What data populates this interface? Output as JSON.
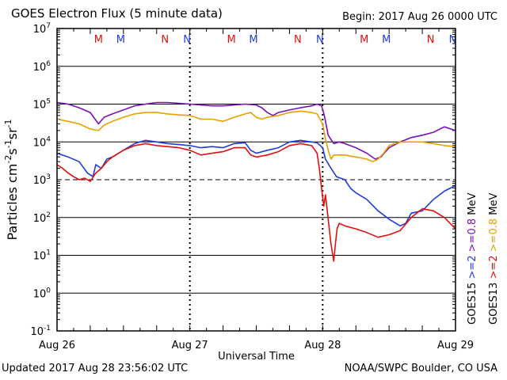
{
  "header": {
    "title": "GOES Electron Flux (5 minute data)",
    "begin": "Begin: 2017 Aug 26 0000 UTC"
  },
  "footer": {
    "updated": "Updated 2017 Aug 28 23:56:02 UTC",
    "credit": "NOAA/SWPC Boulder, CO USA"
  },
  "chart_data": {
    "type": "line",
    "y_scale": "log",
    "ylim": [
      0.1,
      10000000
    ],
    "xlim": [
      0,
      72
    ],
    "xlabel": "Universal Time",
    "x_ticks": [
      {
        "value": 0,
        "label": "Aug 26"
      },
      {
        "value": 24,
        "label": "Aug 27"
      },
      {
        "value": 48,
        "label": "Aug 28"
      },
      {
        "value": 72,
        "label": "Aug 29"
      }
    ],
    "ylabel": {
      "base": "Particles cm",
      "e1": "-2",
      "mid1": "s",
      "e2": "-1",
      "mid2": "sr",
      "e3": "-1"
    },
    "y_ticks": [
      {
        "value": 10000000,
        "base": "10",
        "exp": "7"
      },
      {
        "value": 1000000,
        "base": "10",
        "exp": "6"
      },
      {
        "value": 100000,
        "base": "10",
        "exp": "5"
      },
      {
        "value": 10000,
        "base": "10",
        "exp": "4"
      },
      {
        "value": 1000,
        "base": "10",
        "exp": "3"
      },
      {
        "value": 100,
        "base": "10",
        "exp": "2"
      },
      {
        "value": 10,
        "base": "10",
        "exp": "1"
      },
      {
        "value": 1,
        "base": "10",
        "exp": "0"
      },
      {
        "value": 0.1,
        "base": "10",
        "exp": "-1"
      }
    ],
    "threshold": 1000,
    "grid": true,
    "legend_position": "right-vertical",
    "legend_columns": [
      {
        "sat": "GOES15",
        "entries": [
          {
            "label": ">=2",
            "color": "#1f3ad8"
          },
          {
            "label": ">=0.8",
            "color": "#7a10b8"
          }
        ],
        "unit": "MeV"
      },
      {
        "sat": "GOES13",
        "entries": [
          {
            "label": ">=2",
            "color": "#e01010"
          },
          {
            "label": ">=0.8",
            "color": "#e8a000"
          }
        ],
        "unit": "MeV"
      }
    ],
    "markers": [
      {
        "t": 7.5,
        "text": "M",
        "color": "#e01010"
      },
      {
        "t": 11.5,
        "text": "M",
        "color": "#1f3ad8"
      },
      {
        "t": 19.5,
        "text": "N",
        "color": "#e01010"
      },
      {
        "t": 23.5,
        "text": "N",
        "color": "#1f3ad8"
      },
      {
        "t": 31.5,
        "text": "M",
        "color": "#e01010"
      },
      {
        "t": 35.5,
        "text": "M",
        "color": "#1f3ad8"
      },
      {
        "t": 43.5,
        "text": "N",
        "color": "#e01010"
      },
      {
        "t": 47.5,
        "text": "N",
        "color": "#1f3ad8"
      },
      {
        "t": 55.5,
        "text": "M",
        "color": "#e01010"
      },
      {
        "t": 59.5,
        "text": "M",
        "color": "#1f3ad8"
      },
      {
        "t": 67.5,
        "text": "N",
        "color": "#e01010"
      },
      {
        "t": 71.5,
        "text": "N",
        "color": "#1f3ad8"
      }
    ],
    "series": [
      {
        "color": "#7a10b8",
        "points": [
          [
            0,
            110000
          ],
          [
            2,
            100000
          ],
          [
            4,
            80000
          ],
          [
            6,
            60000
          ],
          [
            7.5,
            30000
          ],
          [
            8.5,
            45000
          ],
          [
            10,
            55000
          ],
          [
            12,
            70000
          ],
          [
            14,
            90000
          ],
          [
            16,
            100000
          ],
          [
            18,
            110000
          ],
          [
            20,
            110000
          ],
          [
            22,
            105000
          ],
          [
            24,
            100000
          ],
          [
            26,
            95000
          ],
          [
            28,
            90000
          ],
          [
            30,
            90000
          ],
          [
            32,
            95000
          ],
          [
            34,
            100000
          ],
          [
            36,
            95000
          ],
          [
            37,
            80000
          ],
          [
            38,
            60000
          ],
          [
            39,
            50000
          ],
          [
            40,
            60000
          ],
          [
            42,
            70000
          ],
          [
            44,
            80000
          ],
          [
            46,
            90000
          ],
          [
            47,
            100000
          ],
          [
            47.8,
            90000
          ],
          [
            48.3,
            50000
          ],
          [
            49,
            15000
          ],
          [
            50,
            9000
          ],
          [
            51,
            10000
          ],
          [
            52,
            9000
          ],
          [
            54,
            7000
          ],
          [
            56,
            5000
          ],
          [
            57.5,
            3500
          ],
          [
            58.5,
            4000
          ],
          [
            60,
            7000
          ],
          [
            62,
            10000
          ],
          [
            64,
            13000
          ],
          [
            66,
            15000
          ],
          [
            68,
            18000
          ],
          [
            70,
            25000
          ],
          [
            72,
            20000
          ]
        ]
      },
      {
        "color": "#e8a000",
        "points": [
          [
            0,
            40000
          ],
          [
            2,
            35000
          ],
          [
            4,
            30000
          ],
          [
            6,
            22000
          ],
          [
            7.5,
            20000
          ],
          [
            8.5,
            28000
          ],
          [
            10,
            35000
          ],
          [
            12,
            45000
          ],
          [
            14,
            55000
          ],
          [
            16,
            60000
          ],
          [
            18,
            60000
          ],
          [
            20,
            55000
          ],
          [
            22,
            52000
          ],
          [
            24,
            50000
          ],
          [
            26,
            40000
          ],
          [
            28,
            40000
          ],
          [
            30,
            35000
          ],
          [
            32,
            45000
          ],
          [
            34,
            55000
          ],
          [
            35,
            60000
          ],
          [
            36,
            45000
          ],
          [
            37,
            40000
          ],
          [
            38,
            45000
          ],
          [
            40,
            50000
          ],
          [
            42,
            60000
          ],
          [
            44,
            65000
          ],
          [
            46,
            60000
          ],
          [
            47,
            55000
          ],
          [
            48,
            30000
          ],
          [
            48.5,
            12000
          ],
          [
            49,
            6000
          ],
          [
            49.5,
            3500
          ],
          [
            50,
            4500
          ],
          [
            52,
            4500
          ],
          [
            54,
            4000
          ],
          [
            56,
            3500
          ],
          [
            57,
            3000
          ],
          [
            58,
            3500
          ],
          [
            59,
            5000
          ],
          [
            60,
            8000
          ],
          [
            62,
            10000
          ],
          [
            64,
            10000
          ],
          [
            66,
            10000
          ],
          [
            68,
            9000
          ],
          [
            70,
            8000
          ],
          [
            72,
            7500
          ]
        ]
      },
      {
        "color": "#1f3ad8",
        "points": [
          [
            0,
            5000
          ],
          [
            2,
            4000
          ],
          [
            4,
            3000
          ],
          [
            5.5,
            1500
          ],
          [
            6.5,
            1200
          ],
          [
            7,
            2500
          ],
          [
            8,
            2000
          ],
          [
            9,
            3500
          ],
          [
            10,
            4000
          ],
          [
            12,
            6000
          ],
          [
            14,
            9000
          ],
          [
            16,
            11000
          ],
          [
            18,
            10000
          ],
          [
            20,
            9000
          ],
          [
            22,
            8500
          ],
          [
            24,
            8000
          ],
          [
            26,
            7000
          ],
          [
            28,
            7500
          ],
          [
            30,
            7000
          ],
          [
            32,
            9000
          ],
          [
            34,
            9500
          ],
          [
            35,
            6000
          ],
          [
            36,
            5000
          ],
          [
            38,
            6000
          ],
          [
            40,
            7000
          ],
          [
            42,
            10000
          ],
          [
            44,
            11000
          ],
          [
            46,
            10000
          ],
          [
            47,
            9500
          ],
          [
            48,
            7000
          ],
          [
            48.5,
            3500
          ],
          [
            49.5,
            2000
          ],
          [
            50.5,
            1200
          ],
          [
            52,
            1000
          ],
          [
            53,
            600
          ],
          [
            54,
            450
          ],
          [
            56,
            300
          ],
          [
            58,
            150
          ],
          [
            60,
            90
          ],
          [
            62,
            60
          ],
          [
            63,
            70
          ],
          [
            64,
            130
          ],
          [
            66,
            150
          ],
          [
            68,
            300
          ],
          [
            70,
            500
          ],
          [
            72,
            700
          ]
        ]
      },
      {
        "color": "#e01010",
        "points": [
          [
            0,
            2500
          ],
          [
            1,
            2000
          ],
          [
            2,
            1500
          ],
          [
            3,
            1200
          ],
          [
            4,
            1000
          ],
          [
            5,
            1100
          ],
          [
            6,
            900
          ],
          [
            7,
            1500
          ],
          [
            8,
            2000
          ],
          [
            9,
            3000
          ],
          [
            10,
            4000
          ],
          [
            12,
            6000
          ],
          [
            14,
            8000
          ],
          [
            16,
            9000
          ],
          [
            18,
            8000
          ],
          [
            20,
            7500
          ],
          [
            22,
            7000
          ],
          [
            24,
            6000
          ],
          [
            26,
            4500
          ],
          [
            28,
            5000
          ],
          [
            30,
            5500
          ],
          [
            32,
            7000
          ],
          [
            34,
            7000
          ],
          [
            35,
            4500
          ],
          [
            36,
            4000
          ],
          [
            38,
            4500
          ],
          [
            40,
            5500
          ],
          [
            42,
            8000
          ],
          [
            44,
            9000
          ],
          [
            46,
            8000
          ],
          [
            47,
            5000
          ],
          [
            47.4,
            2000
          ],
          [
            47.8,
            600
          ],
          [
            48.2,
            200
          ],
          [
            48.5,
            400
          ],
          [
            49,
            90
          ],
          [
            49.5,
            20
          ],
          [
            50,
            7
          ],
          [
            50.3,
            20
          ],
          [
            50.6,
            50
          ],
          [
            51,
            70
          ],
          [
            52,
            60
          ],
          [
            54,
            50
          ],
          [
            56,
            40
          ],
          [
            58,
            30
          ],
          [
            60,
            35
          ],
          [
            62,
            45
          ],
          [
            64,
            100
          ],
          [
            66,
            170
          ],
          [
            68,
            150
          ],
          [
            70,
            100
          ],
          [
            72,
            50
          ]
        ]
      }
    ]
  }
}
